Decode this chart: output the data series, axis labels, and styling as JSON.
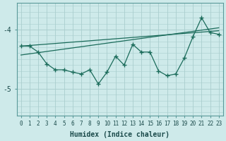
{
  "xlabel": "Humidex (Indice chaleur)",
  "bg_color": "#ceeaea",
  "grid_color": "#aacece",
  "line_color": "#1a6b5a",
  "xlim": [
    -0.5,
    23.5
  ],
  "ylim": [
    -5.45,
    -3.55
  ],
  "yticks": [
    -5,
    -4
  ],
  "xticks": [
    0,
    1,
    2,
    3,
    4,
    5,
    6,
    7,
    8,
    9,
    10,
    11,
    12,
    13,
    14,
    15,
    16,
    17,
    18,
    19,
    20,
    21,
    22,
    23
  ],
  "wavy_y": [
    -4.28,
    -4.28,
    -4.38,
    -4.58,
    -4.68,
    -4.68,
    -4.72,
    -4.75,
    -4.68,
    -4.92,
    -4.72,
    -4.45,
    -4.6,
    -4.25,
    -4.38,
    -4.38,
    -4.7,
    -4.78,
    -4.75,
    -4.48,
    -4.12,
    -3.8,
    -4.05,
    -4.08
  ],
  "trend1_x": [
    0,
    23
  ],
  "trend1_y": [
    -4.28,
    -4.02
  ],
  "trend2_x": [
    0,
    23
  ],
  "trend2_y": [
    -4.43,
    -3.97
  ],
  "spine_color": "#5a9a9a",
  "tick_fontsize": 5.5,
  "xlabel_fontsize": 7
}
